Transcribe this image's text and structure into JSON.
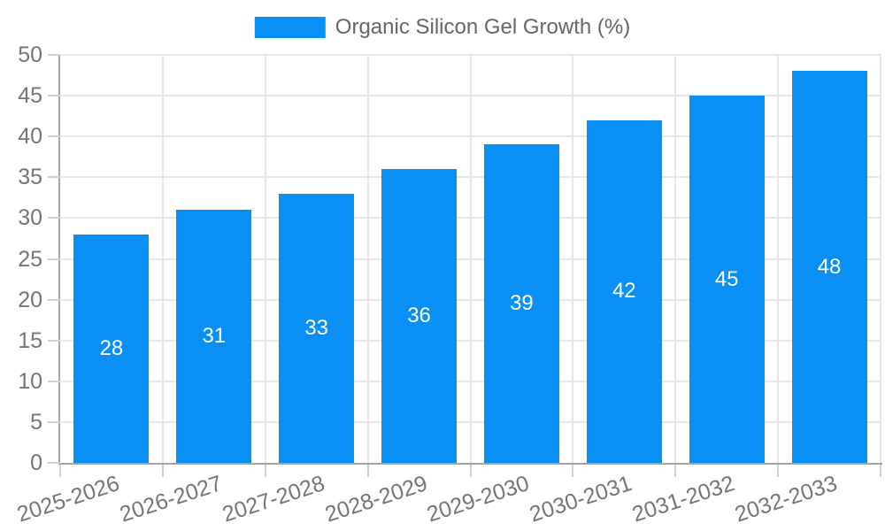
{
  "chart_data": {
    "type": "bar",
    "title": "Organic Silicon Gel Growth (%)",
    "legend": {
      "label": "Organic Silicon Gel Growth (%)",
      "position": "top"
    },
    "categories": [
      "2025-2026",
      "2026-2027",
      "2027-2028",
      "2028-2029",
      "2029-2030",
      "2030-2031",
      "2031-2032",
      "2032-2033"
    ],
    "values": [
      28,
      31,
      33,
      36,
      39,
      42,
      45,
      48
    ],
    "xlabel": "",
    "ylabel": "",
    "ylim": [
      0,
      50
    ],
    "ytick_step": 5,
    "yticks": [
      0,
      5,
      10,
      15,
      20,
      25,
      30,
      35,
      40,
      45,
      50
    ],
    "grid": true,
    "x_label_rotation_deg": -18,
    "colors": {
      "bar": "#0a90f4",
      "value_label": "#ffffff",
      "axis": "#a3a3a3",
      "grid": "#e7e7e7",
      "tick": "#cfcfcf",
      "tick_label": "#757575",
      "legend_text": "#666666",
      "background": "#ffffff"
    }
  }
}
